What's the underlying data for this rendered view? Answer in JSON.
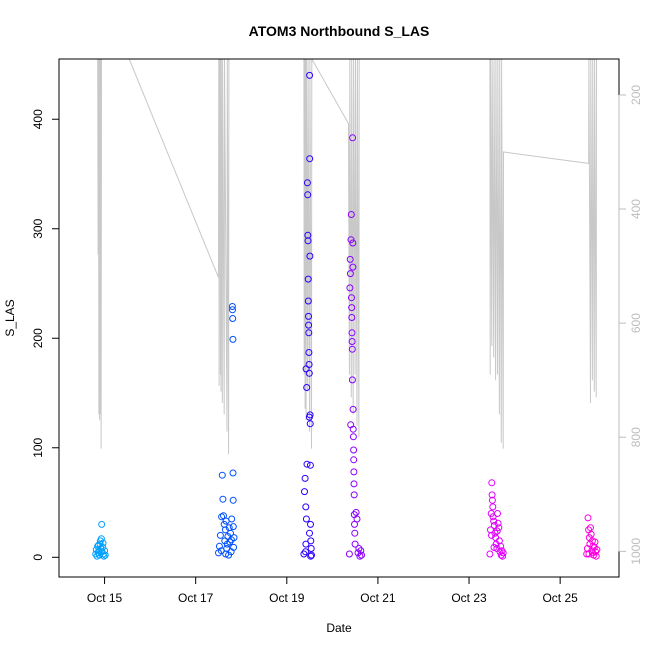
{
  "chart_data": {
    "type": "scatter",
    "title": "ATOM3 Northbound S_LAS",
    "xlabel": "Date",
    "ylabel": "S_LAS",
    "x_unit": "date",
    "xlim": [
      "2023-10-14 00:00",
      "2023-10-26 07:00"
    ],
    "x_ticks": [
      {
        "label": "Oct 15",
        "date": "2023-10-15"
      },
      {
        "label": "Oct 17",
        "date": "2023-10-17"
      },
      {
        "label": "Oct 19",
        "date": "2023-10-19"
      },
      {
        "label": "Oct 21",
        "date": "2023-10-21"
      },
      {
        "label": "Oct 23",
        "date": "2023-10-23"
      },
      {
        "label": "Oct 25",
        "date": "2023-10-25"
      }
    ],
    "ylim": [
      -18,
      455
    ],
    "y_ticks": [
      0,
      100,
      200,
      300,
      400
    ],
    "right_axis": {
      "color": "#bdbdbd",
      "reversed": true,
      "ylim": [
        1045,
        137
      ],
      "ticks": [
        200,
        400,
        600,
        800,
        1000
      ]
    },
    "grid": false,
    "legend": "none",
    "colors": {
      "clusters": [
        "#00a0ff",
        "#0050ff",
        "#2a00ff",
        "#8a00ff",
        "#e000ff",
        "#ff00e0"
      ],
      "secondary_line": "#c8c8c8"
    },
    "secondary_series": {
      "type": "line",
      "axis": "right",
      "points": [
        [
          "2023-10-14 20:24",
          137
        ],
        [
          "2023-10-14 20:36",
          480
        ],
        [
          "2023-10-14 20:48",
          137
        ],
        [
          "2023-10-14 21:00",
          760
        ],
        [
          "2023-10-14 21:12",
          137
        ],
        [
          "2023-10-14 21:24",
          770
        ],
        [
          "2023-10-14 21:36",
          137
        ],
        [
          "2023-10-14 21:48",
          760
        ],
        [
          "2023-10-14 22:00",
          137
        ],
        [
          "2023-10-14 22:12",
          820
        ],
        [
          "2023-10-14 22:24",
          137
        ],
        [
          "2023-10-15 13:00",
          137
        ],
        [
          "2023-10-17 12:00",
          520
        ],
        [
          "2023-10-17 12:10",
          137
        ],
        [
          "2023-10-17 12:20",
          710
        ],
        [
          "2023-10-17 12:30",
          137
        ],
        [
          "2023-10-17 12:40",
          370
        ],
        [
          "2023-10-17 12:50",
          137
        ],
        [
          "2023-10-17 13:00",
          690
        ],
        [
          "2023-10-17 13:10",
          137
        ],
        [
          "2023-10-17 13:20",
          720
        ],
        [
          "2023-10-17 13:30",
          137
        ],
        [
          "2023-10-17 14:00",
          740
        ],
        [
          "2023-10-17 14:10",
          137
        ],
        [
          "2023-10-17 15:00",
          760
        ],
        [
          "2023-10-17 15:10",
          137
        ],
        [
          "2023-10-17 16:30",
          790
        ],
        [
          "2023-10-17 16:40",
          137
        ],
        [
          "2023-10-17 17:20",
          830
        ],
        [
          "2023-10-17 17:30",
          137
        ],
        [
          "2023-10-19 09:00",
          137
        ],
        [
          "2023-10-19 09:10",
          690
        ],
        [
          "2023-10-19 09:20",
          137
        ],
        [
          "2023-10-19 09:40",
          750
        ],
        [
          "2023-10-19 09:50",
          137
        ],
        [
          "2023-10-19 10:10",
          770
        ],
        [
          "2023-10-19 10:20",
          137
        ],
        [
          "2023-10-19 11:00",
          720
        ],
        [
          "2023-10-19 11:10",
          137
        ],
        [
          "2023-10-19 12:00",
          790
        ],
        [
          "2023-10-19 12:10",
          137
        ],
        [
          "2023-10-19 13:00",
          820
        ],
        [
          "2023-10-19 13:10",
          137
        ],
        [
          "2023-10-20 08:30",
          250
        ],
        [
          "2023-10-20 09:00",
          690
        ],
        [
          "2023-10-20 09:10",
          137
        ],
        [
          "2023-10-20 10:00",
          730
        ],
        [
          "2023-10-20 10:10",
          137
        ],
        [
          "2023-10-20 11:00",
          760
        ],
        [
          "2023-10-20 11:10",
          137
        ],
        [
          "2023-10-20 12:00",
          690
        ],
        [
          "2023-10-20 12:10",
          137
        ],
        [
          "2023-10-20 13:00",
          780
        ],
        [
          "2023-10-20 13:10",
          137
        ],
        [
          "2023-10-20 14:00",
          800
        ],
        [
          "2023-10-20 14:10",
          137
        ],
        [
          "2023-10-23 11:00",
          137
        ],
        [
          "2023-10-23 11:10",
          690
        ],
        [
          "2023-10-23 11:20",
          137
        ],
        [
          "2023-10-23 12:00",
          640
        ],
        [
          "2023-10-23 12:10",
          137
        ],
        [
          "2023-10-23 13:00",
          660
        ],
        [
          "2023-10-23 13:10",
          137
        ],
        [
          "2023-10-23 14:00",
          700
        ],
        [
          "2023-10-23 14:10",
          137
        ],
        [
          "2023-10-23 15:00",
          690
        ],
        [
          "2023-10-23 15:10",
          137
        ],
        [
          "2023-10-23 16:00",
          760
        ],
        [
          "2023-10-23 16:10",
          137
        ],
        [
          "2023-10-23 17:00",
          810
        ],
        [
          "2023-10-23 17:10",
          137
        ],
        [
          "2023-10-23 18:00",
          820
        ],
        [
          "2023-10-23 18:10",
          300
        ],
        [
          "2023-10-25 15:00",
          320
        ],
        [
          "2023-10-25 15:10",
          137
        ],
        [
          "2023-10-25 16:00",
          740
        ],
        [
          "2023-10-25 16:10",
          137
        ],
        [
          "2023-10-25 17:00",
          700
        ],
        [
          "2023-10-25 17:10",
          137
        ],
        [
          "2023-10-25 18:00",
          720
        ],
        [
          "2023-10-25 18:10",
          137
        ],
        [
          "2023-10-25 19:00",
          730
        ],
        [
          "2023-10-25 19:10",
          137
        ]
      ]
    },
    "series": [
      {
        "color": "#00a0ff",
        "points": [
          [
            "2023-10-14 19:20",
            3
          ],
          [
            "2023-10-14 19:40",
            7
          ],
          [
            "2023-10-14 20:00",
            1
          ],
          [
            "2023-10-14 20:20",
            10
          ],
          [
            "2023-10-14 20:40",
            4
          ],
          [
            "2023-10-14 21:00",
            6
          ],
          [
            "2023-10-14 21:20",
            2
          ],
          [
            "2023-10-14 21:40",
            12
          ],
          [
            "2023-10-14 22:00",
            8
          ],
          [
            "2023-10-14 22:20",
            17
          ],
          [
            "2023-10-14 22:30",
            30
          ],
          [
            "2023-10-14 22:40",
            5
          ],
          [
            "2023-10-14 23:00",
            9
          ],
          [
            "2023-10-14 23:20",
            3
          ],
          [
            "2023-10-14 23:40",
            1
          ],
          [
            "2023-10-15 00:00",
            6
          ],
          [
            "2023-10-15 00:20",
            2
          ],
          [
            "2023-10-14 21:50",
            15
          ],
          [
            "2023-10-14 20:50",
            11
          ],
          [
            "2023-10-14 23:10",
            13
          ]
        ]
      },
      {
        "color": "#0050ff",
        "points": [
          [
            "2023-10-17 12:00",
            4
          ],
          [
            "2023-10-17 12:30",
            10
          ],
          [
            "2023-10-17 13:00",
            20
          ],
          [
            "2023-10-17 13:30",
            6
          ],
          [
            "2023-10-17 14:00",
            75
          ],
          [
            "2023-10-17 14:20",
            53
          ],
          [
            "2023-10-17 14:40",
            38
          ],
          [
            "2023-10-17 15:00",
            30
          ],
          [
            "2023-10-17 15:20",
            15
          ],
          [
            "2023-10-17 15:40",
            25
          ],
          [
            "2023-10-17 16:00",
            33
          ],
          [
            "2023-10-17 16:20",
            8
          ],
          [
            "2023-10-17 16:40",
            12
          ],
          [
            "2023-10-17 17:00",
            19
          ],
          [
            "2023-10-17 17:20",
            2
          ],
          [
            "2023-10-17 17:40",
            27
          ],
          [
            "2023-10-17 18:00",
            14
          ],
          [
            "2023-10-17 18:20",
            22
          ],
          [
            "2023-10-17 18:40",
            5
          ],
          [
            "2023-10-17 19:00",
            35
          ],
          [
            "2023-10-17 19:20",
            229
          ],
          [
            "2023-10-17 19:25",
            226
          ],
          [
            "2023-10-17 19:30",
            218
          ],
          [
            "2023-10-17 19:35",
            199
          ],
          [
            "2023-10-17 19:40",
            77
          ],
          [
            "2023-10-17 19:45",
            52
          ],
          [
            "2023-10-17 19:50",
            28
          ],
          [
            "2023-10-17 20:00",
            9
          ],
          [
            "2023-10-17 20:10",
            18
          ],
          [
            "2023-10-17 13:40",
            37
          ],
          [
            "2023-10-17 15:50",
            3
          ],
          [
            "2023-10-17 18:50",
            16
          ]
        ]
      },
      {
        "color": "#2a00ff",
        "points": [
          [
            "2023-10-19 09:00",
            3
          ],
          [
            "2023-10-19 09:20",
            60
          ],
          [
            "2023-10-19 09:40",
            72
          ],
          [
            "2023-10-19 10:00",
            46
          ],
          [
            "2023-10-19 10:10",
            172
          ],
          [
            "2023-10-19 10:20",
            35
          ],
          [
            "2023-10-19 10:30",
            155
          ],
          [
            "2023-10-19 10:40",
            85
          ],
          [
            "2023-10-19 10:50",
            342
          ],
          [
            "2023-10-19 11:00",
            331
          ],
          [
            "2023-10-19 11:05",
            294
          ],
          [
            "2023-10-19 11:10",
            289
          ],
          [
            "2023-10-19 11:15",
            254
          ],
          [
            "2023-10-19 11:20",
            234
          ],
          [
            "2023-10-19 11:25",
            220
          ],
          [
            "2023-10-19 11:30",
            212
          ],
          [
            "2023-10-19 11:35",
            205
          ],
          [
            "2023-10-19 11:40",
            187
          ],
          [
            "2023-10-19 11:45",
            176
          ],
          [
            "2023-10-19 11:50",
            168
          ],
          [
            "2023-10-19 11:55",
            128
          ],
          [
            "2023-10-19 12:00",
            440
          ],
          [
            "2023-10-19 12:05",
            364
          ],
          [
            "2023-10-19 12:10",
            275
          ],
          [
            "2023-10-19 12:15",
            130
          ],
          [
            "2023-10-19 12:20",
            122
          ],
          [
            "2023-10-19 12:25",
            84
          ],
          [
            "2023-10-19 12:30",
            30
          ],
          [
            "2023-10-19 12:40",
            15
          ],
          [
            "2023-10-19 12:50",
            8
          ],
          [
            "2023-10-19 13:00",
            2
          ],
          [
            "2023-10-19 09:50",
            5
          ],
          [
            "2023-10-19 10:05",
            12
          ],
          [
            "2023-10-19 11:58",
            22
          ],
          [
            "2023-10-19 12:35",
            1
          ]
        ]
      },
      {
        "color": "#8a00ff",
        "points": [
          [
            "2023-10-20 09:00",
            3
          ],
          [
            "2023-10-20 09:30",
            259
          ],
          [
            "2023-10-20 09:40",
            121
          ],
          [
            "2023-10-20 09:50",
            290
          ],
          [
            "2023-10-20 10:00",
            313
          ],
          [
            "2023-10-20 10:05",
            237
          ],
          [
            "2023-10-20 10:10",
            228
          ],
          [
            "2023-10-20 10:15",
            219
          ],
          [
            "2023-10-20 10:20",
            205
          ],
          [
            "2023-10-20 10:25",
            197
          ],
          [
            "2023-10-20 10:30",
            190
          ],
          [
            "2023-10-20 10:35",
            162
          ],
          [
            "2023-10-20 10:40",
            383
          ],
          [
            "2023-10-20 10:45",
            287
          ],
          [
            "2023-10-20 10:50",
            265
          ],
          [
            "2023-10-20 10:55",
            135
          ],
          [
            "2023-10-20 11:00",
            117
          ],
          [
            "2023-10-20 11:05",
            110
          ],
          [
            "2023-10-20 11:10",
            98
          ],
          [
            "2023-10-20 11:15",
            89
          ],
          [
            "2023-10-20 11:20",
            78
          ],
          [
            "2023-10-20 11:25",
            67
          ],
          [
            "2023-10-20 11:30",
            57
          ],
          [
            "2023-10-20 11:35",
            39
          ],
          [
            "2023-10-20 11:40",
            30
          ],
          [
            "2023-10-20 11:50",
            22
          ],
          [
            "2023-10-20 12:00",
            12
          ],
          [
            "2023-10-20 12:30",
            41
          ],
          [
            "2023-10-20 13:00",
            35
          ],
          [
            "2023-10-20 13:30",
            4
          ],
          [
            "2023-10-20 14:00",
            8
          ],
          [
            "2023-10-20 14:30",
            1
          ],
          [
            "2023-10-20 15:00",
            6
          ],
          [
            "2023-10-20 15:20",
            2
          ],
          [
            "2023-10-20 09:15",
            246
          ],
          [
            "2023-10-20 09:25",
            272
          ]
        ]
      },
      {
        "color": "#e000ff",
        "points": [
          [
            "2023-10-23 11:00",
            3
          ],
          [
            "2023-10-23 11:20",
            25
          ],
          [
            "2023-10-23 11:40",
            40
          ],
          [
            "2023-10-23 12:00",
            68
          ],
          [
            "2023-10-23 12:10",
            57
          ],
          [
            "2023-10-23 12:20",
            52
          ],
          [
            "2023-10-23 12:30",
            46
          ],
          [
            "2023-10-23 12:40",
            37
          ],
          [
            "2023-10-23 13:00",
            33
          ],
          [
            "2023-10-23 13:20",
            29
          ],
          [
            "2023-10-23 13:40",
            22
          ],
          [
            "2023-10-23 14:00",
            18
          ],
          [
            "2023-10-23 14:20",
            12
          ],
          [
            "2023-10-23 14:40",
            8
          ],
          [
            "2023-10-23 15:00",
            40
          ],
          [
            "2023-10-23 15:20",
            31
          ],
          [
            "2023-10-23 15:40",
            27
          ],
          [
            "2023-10-23 16:00",
            15
          ],
          [
            "2023-10-23 16:20",
            5
          ],
          [
            "2023-10-23 16:40",
            10
          ],
          [
            "2023-10-23 17:00",
            2
          ],
          [
            "2023-10-23 17:20",
            6
          ],
          [
            "2023-10-23 17:40",
            1
          ],
          [
            "2023-10-23 18:00",
            4
          ],
          [
            "2023-10-23 11:50",
            20
          ],
          [
            "2023-10-23 13:10",
            9
          ],
          [
            "2023-10-23 14:50",
            24
          ]
        ]
      },
      {
        "color": "#ff00e0",
        "points": [
          [
            "2023-10-25 14:00",
            3
          ],
          [
            "2023-10-25 14:20",
            8
          ],
          [
            "2023-10-25 14:40",
            36
          ],
          [
            "2023-10-25 15:00",
            25
          ],
          [
            "2023-10-25 15:20",
            18
          ],
          [
            "2023-10-25 15:40",
            12
          ],
          [
            "2023-10-25 16:00",
            27
          ],
          [
            "2023-10-25 16:20",
            21
          ],
          [
            "2023-10-25 16:40",
            6
          ],
          [
            "2023-10-25 17:00",
            15
          ],
          [
            "2023-10-25 17:20",
            10
          ],
          [
            "2023-10-25 17:40",
            2
          ],
          [
            "2023-10-25 18:00",
            9
          ],
          [
            "2023-10-25 18:20",
            14
          ],
          [
            "2023-10-25 18:40",
            5
          ],
          [
            "2023-10-25 19:00",
            1
          ],
          [
            "2023-10-25 19:20",
            7
          ],
          [
            "2023-10-25 15:10",
            3
          ],
          [
            "2023-10-25 17:10",
            4
          ]
        ]
      }
    ]
  }
}
